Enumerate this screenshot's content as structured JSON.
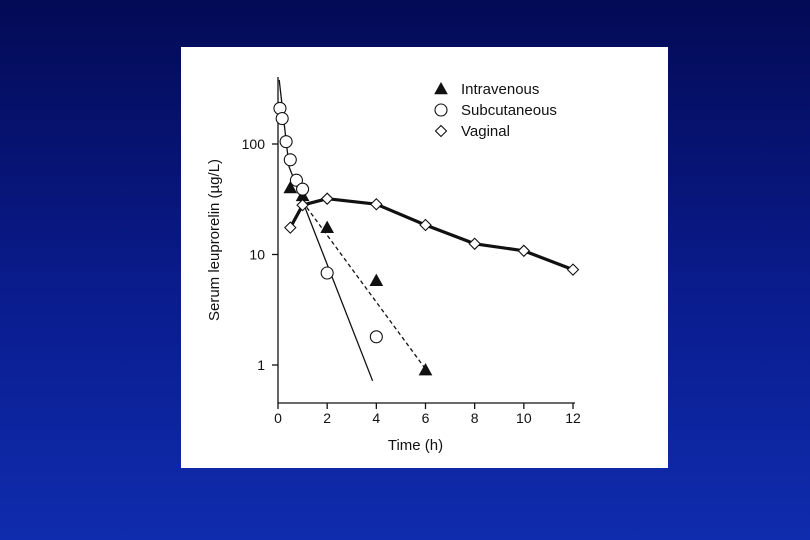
{
  "slide": {
    "background_top": "#030a55",
    "background_bottom": "#0f2cae",
    "panel_color": "#ffffff"
  },
  "chart_data": {
    "type": "scatter",
    "title": "",
    "xlabel": "Time (h)",
    "ylabel": "Serum leuprorelin (µg/L)",
    "xlim": [
      0,
      12
    ],
    "ylim": [
      0.6,
      400
    ],
    "yscale": "log",
    "x_ticks": [
      0,
      2,
      4,
      6,
      8,
      10,
      12
    ],
    "x_tick_labels": [
      "0",
      "2",
      "4",
      "6",
      "8",
      "10",
      "12"
    ],
    "y_ticks": [
      1,
      10,
      100
    ],
    "y_tick_labels": [
      "1",
      "10",
      "100"
    ],
    "grid": false,
    "legend_position": "top-right",
    "series": [
      {
        "name": "Intravenous",
        "marker": "filled-triangle",
        "line": "dashed",
        "x": [
          0.5,
          1,
          2,
          4,
          6
        ],
        "y": [
          40,
          34,
          17.5,
          5.8,
          0.9
        ],
        "fit_line": {
          "x": [
            1,
            6
          ],
          "y": [
            30,
            0.92
          ]
        }
      },
      {
        "name": "Subcutaneous",
        "marker": "open-circle",
        "line": "thin-solid",
        "x": [
          0.08,
          0.17,
          0.33,
          0.5,
          0.75,
          1,
          2,
          4
        ],
        "y": [
          210,
          170,
          105,
          72,
          47,
          39,
          6.8,
          1.8
        ],
        "fit_line": {
          "x": [
            0.05,
            0.45,
            3.85
          ],
          "y": [
            380,
            62,
            0.72
          ]
        }
      },
      {
        "name": "Vaginal",
        "marker": "open-diamond",
        "line": "thick-solid",
        "x": [
          0.5,
          1,
          2,
          4,
          6,
          8,
          10,
          12
        ],
        "y": [
          17.5,
          28,
          32,
          28.5,
          18.5,
          12.5,
          10.8,
          7.3
        ],
        "fit_line": {
          "x": [
            0.5,
            1,
            2,
            4,
            6,
            8,
            10,
            12
          ],
          "y": [
            17.5,
            28,
            32,
            28.5,
            18.5,
            12.5,
            10.8,
            7.3
          ]
        }
      }
    ]
  }
}
